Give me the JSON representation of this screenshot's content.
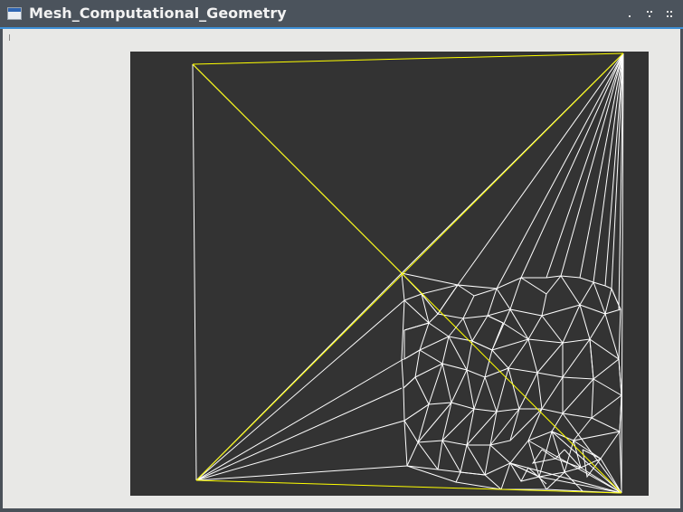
{
  "window": {
    "title": "Mesh_Computational_Geometry",
    "controls": [
      "minimize-icon",
      "maximize-icon",
      "close-icon"
    ]
  },
  "canvas": {
    "background": "#333333",
    "mesh_color": "#ffffff",
    "highlight_color": "#ffff00"
  },
  "colors": {
    "titlebar": "#4b535c",
    "accent": "#3d8fd6",
    "client": "#e8e8e6"
  }
}
